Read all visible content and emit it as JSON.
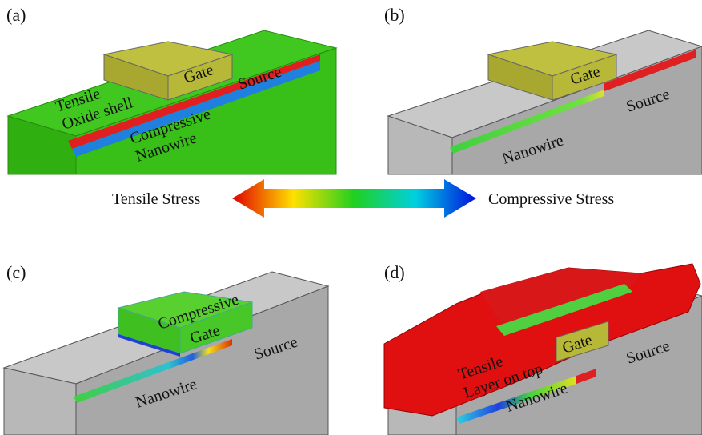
{
  "panels": [
    {
      "label": "(a)",
      "gate": "Gate",
      "source": "Source",
      "shell_1": "Tensile",
      "shell_2": "Oxide shell",
      "wire_1": "Compressive",
      "wire_2": "Nanowire"
    },
    {
      "label": "(b)",
      "gate": "Gate",
      "source": "Source",
      "wire": "Nanowire"
    },
    {
      "label": "(c)",
      "gate_1": "Compressive",
      "gate_2": "Gate",
      "source": "Source",
      "wire": "Nanowire"
    },
    {
      "label": "(d)",
      "layer_1": "Tensile",
      "layer_2": "Layer on top",
      "gate": "Gate",
      "source": "Source",
      "wire": "Nanowire"
    }
  ],
  "legend": {
    "left": "Tensile Stress",
    "right": "Compressive Stress"
  }
}
